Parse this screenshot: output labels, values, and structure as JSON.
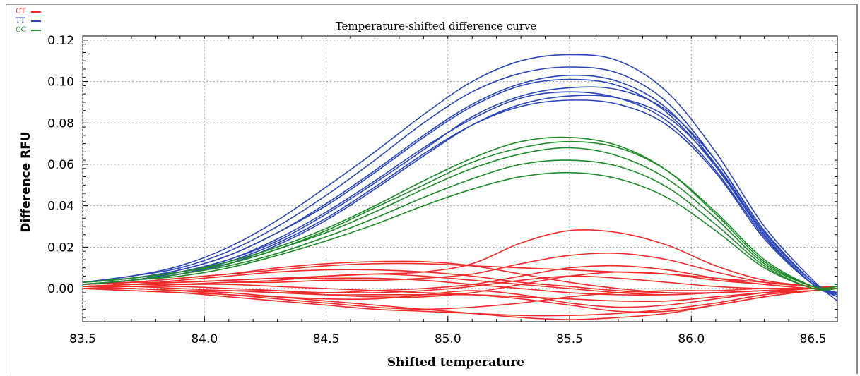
{
  "legend": [
    {
      "label": "CT",
      "color": "#ee2a2a"
    },
    {
      "label": "TT",
      "color": "#2c46b8"
    },
    {
      "label": "CC",
      "color": "#1e8a2a"
    }
  ],
  "chart_data": {
    "type": "line",
    "title": "Temperature-shifted difference curve",
    "xlabel": "Shifted temperature",
    "ylabel": "Difference RFU",
    "xlim": [
      83.5,
      86.6
    ],
    "ylim": [
      -0.016,
      0.122
    ],
    "x_ticks": [
      "83.5",
      "84.0",
      "84.5",
      "85.0",
      "85.5",
      "86.0",
      "86.5"
    ],
    "y_ticks": [
      "0.00",
      "0.02",
      "0.04",
      "0.06",
      "0.08",
      "0.10",
      "0.12"
    ],
    "grid": true,
    "legend_position": "top-left",
    "x": [
      83.5,
      83.7,
      83.9,
      84.1,
      84.3,
      84.5,
      84.7,
      84.9,
      85.1,
      85.3,
      85.5,
      85.7,
      85.9,
      86.1,
      86.3,
      86.5,
      86.6
    ],
    "series": [
      {
        "group": "TT",
        "color": "#2c46b8",
        "values": [
          0.003,
          0.006,
          0.011,
          0.02,
          0.033,
          0.049,
          0.066,
          0.084,
          0.1,
          0.11,
          0.113,
          0.11,
          0.095,
          0.066,
          0.03,
          0.004,
          -0.006
        ]
      },
      {
        "group": "TT",
        "color": "#2c46b8",
        "values": [
          0.003,
          0.006,
          0.01,
          0.018,
          0.03,
          0.045,
          0.062,
          0.08,
          0.095,
          0.104,
          0.107,
          0.104,
          0.09,
          0.062,
          0.028,
          0.003,
          -0.004
        ]
      },
      {
        "group": "TT",
        "color": "#2c46b8",
        "values": [
          0.003,
          0.005,
          0.009,
          0.016,
          0.027,
          0.041,
          0.057,
          0.074,
          0.089,
          0.099,
          0.103,
          0.1,
          0.087,
          0.06,
          0.026,
          0.002,
          -0.003
        ]
      },
      {
        "group": "TT",
        "color": "#2c46b8",
        "values": [
          0.002,
          0.004,
          0.008,
          0.014,
          0.024,
          0.037,
          0.052,
          0.068,
          0.082,
          0.092,
          0.095,
          0.092,
          0.081,
          0.057,
          0.025,
          0.002,
          -0.002
        ]
      },
      {
        "group": "TT",
        "color": "#2c46b8",
        "values": [
          0.002,
          0.004,
          0.007,
          0.013,
          0.022,
          0.034,
          0.049,
          0.065,
          0.079,
          0.088,
          0.091,
          0.089,
          0.079,
          0.056,
          0.024,
          0.002,
          -0.002
        ]
      },
      {
        "group": "TT",
        "color": "#2c46b8",
        "values": [
          0.002,
          0.004,
          0.008,
          0.014,
          0.023,
          0.036,
          0.051,
          0.067,
          0.083,
          0.093,
          0.097,
          0.096,
          0.086,
          0.062,
          0.028,
          0.003,
          -0.003
        ]
      },
      {
        "group": "TT",
        "color": "#2c46b8",
        "values": [
          0.002,
          0.004,
          0.007,
          0.012,
          0.021,
          0.033,
          0.048,
          0.064,
          0.079,
          0.089,
          0.093,
          0.092,
          0.083,
          0.06,
          0.027,
          0.003,
          -0.002
        ]
      },
      {
        "group": "TT",
        "color": "#2c46b8",
        "values": [
          0.003,
          0.005,
          0.009,
          0.016,
          0.027,
          0.04,
          0.056,
          0.073,
          0.088,
          0.098,
          0.101,
          0.098,
          0.085,
          0.059,
          0.026,
          0.002,
          -0.003
        ]
      },
      {
        "group": "CC",
        "color": "#1e8a2a",
        "values": [
          0.003,
          0.005,
          0.008,
          0.013,
          0.02,
          0.029,
          0.04,
          0.052,
          0.063,
          0.071,
          0.073,
          0.069,
          0.057,
          0.036,
          0.013,
          0.001,
          0.001
        ]
      },
      {
        "group": "CC",
        "color": "#1e8a2a",
        "values": [
          0.003,
          0.005,
          0.008,
          0.012,
          0.019,
          0.027,
          0.037,
          0.048,
          0.058,
          0.065,
          0.068,
          0.064,
          0.053,
          0.034,
          0.012,
          0.001,
          0.001
        ]
      },
      {
        "group": "CC",
        "color": "#1e8a2a",
        "values": [
          0.002,
          0.004,
          0.007,
          0.011,
          0.017,
          0.025,
          0.034,
          0.044,
          0.053,
          0.06,
          0.062,
          0.059,
          0.049,
          0.031,
          0.011,
          0.0,
          0.0
        ]
      },
      {
        "group": "CC",
        "color": "#1e8a2a",
        "values": [
          0.002,
          0.004,
          0.006,
          0.01,
          0.016,
          0.023,
          0.031,
          0.04,
          0.048,
          0.054,
          0.056,
          0.053,
          0.044,
          0.028,
          0.01,
          0.0,
          0.0
        ]
      },
      {
        "group": "CC",
        "color": "#1e8a2a",
        "values": [
          0.003,
          0.005,
          0.008,
          0.012,
          0.019,
          0.028,
          0.039,
          0.05,
          0.061,
          0.068,
          0.071,
          0.068,
          0.057,
          0.037,
          0.014,
          0.001,
          0.0
        ]
      },
      {
        "group": "CT",
        "color": "#ee2a2a",
        "values": [
          0.002,
          0.003,
          0.005,
          0.007,
          0.009,
          0.011,
          0.012,
          0.012,
          0.011,
          0.01,
          0.009,
          0.008,
          0.007,
          0.005,
          0.003,
          0.001,
          0.001
        ]
      },
      {
        "group": "CT",
        "color": "#ee2a2a",
        "values": [
          0.001,
          0.002,
          0.003,
          0.004,
          0.005,
          0.006,
          0.007,
          0.008,
          0.012,
          0.022,
          0.028,
          0.027,
          0.021,
          0.011,
          0.004,
          0.001,
          0.0
        ]
      },
      {
        "group": "CT",
        "color": "#ee2a2a",
        "values": [
          0.0,
          -0.001,
          -0.002,
          -0.004,
          -0.006,
          -0.008,
          -0.01,
          -0.011,
          -0.012,
          -0.013,
          -0.013,
          -0.012,
          -0.01,
          -0.007,
          -0.003,
          -0.001,
          0.0
        ]
      },
      {
        "group": "CT",
        "color": "#ee2a2a",
        "values": [
          0.0,
          0.0,
          -0.001,
          -0.002,
          -0.004,
          -0.006,
          -0.008,
          -0.01,
          -0.012,
          -0.014,
          -0.015,
          -0.014,
          -0.012,
          -0.008,
          -0.004,
          -0.001,
          0.0
        ]
      },
      {
        "group": "CT",
        "color": "#ee2a2a",
        "values": [
          0.001,
          0.002,
          0.002,
          0.003,
          0.003,
          0.004,
          0.004,
          0.005,
          0.007,
          0.012,
          0.016,
          0.017,
          0.014,
          0.008,
          0.003,
          0.001,
          0.0
        ]
      },
      {
        "group": "CT",
        "color": "#ee2a2a",
        "values": [
          0.001,
          0.001,
          0.001,
          0.0,
          -0.001,
          -0.003,
          -0.004,
          -0.004,
          -0.002,
          0.002,
          0.006,
          0.008,
          0.007,
          0.004,
          0.002,
          0.0,
          0.0
        ]
      },
      {
        "group": "CT",
        "color": "#ee2a2a",
        "values": [
          0.001,
          0.002,
          0.004,
          0.006,
          0.008,
          0.009,
          0.009,
          0.008,
          0.006,
          0.003,
          0.001,
          -0.001,
          -0.002,
          -0.002,
          -0.001,
          0.0,
          0.0
        ]
      },
      {
        "group": "CT",
        "color": "#ee2a2a",
        "values": [
          0.0,
          0.0,
          -0.001,
          -0.001,
          -0.002,
          -0.002,
          -0.002,
          -0.001,
          0.001,
          0.004,
          0.006,
          0.005,
          0.003,
          0.001,
          0.0,
          0.0,
          0.0
        ]
      },
      {
        "group": "CT",
        "color": "#ee2a2a",
        "values": [
          0.001,
          0.0,
          -0.001,
          -0.003,
          -0.004,
          -0.005,
          -0.005,
          -0.003,
          -0.001,
          -0.003,
          -0.007,
          -0.009,
          -0.008,
          -0.005,
          -0.002,
          0.0,
          0.0
        ]
      },
      {
        "group": "CT",
        "color": "#ee2a2a",
        "values": [
          0.002,
          0.003,
          0.003,
          0.004,
          0.005,
          0.005,
          0.005,
          0.004,
          0.002,
          0.0,
          -0.002,
          -0.003,
          -0.003,
          -0.002,
          -0.001,
          0.0,
          0.0
        ]
      },
      {
        "group": "CT",
        "color": "#ee2a2a",
        "values": [
          0.001,
          0.001,
          0.002,
          0.003,
          0.004,
          0.006,
          0.007,
          0.006,
          0.004,
          0.002,
          0.0,
          -0.002,
          -0.003,
          -0.002,
          -0.001,
          0.0,
          0.0
        ]
      },
      {
        "group": "CT",
        "color": "#ee2a2a",
        "values": [
          0.0,
          0.0,
          -0.001,
          -0.001,
          -0.002,
          -0.003,
          -0.003,
          -0.003,
          -0.003,
          -0.004,
          -0.005,
          -0.006,
          -0.006,
          -0.004,
          -0.002,
          -0.001,
          0.0
        ]
      },
      {
        "group": "CT",
        "color": "#ee2a2a",
        "values": [
          0.002,
          0.003,
          0.005,
          0.007,
          0.01,
          0.012,
          0.013,
          0.013,
          0.011,
          0.007,
          0.003,
          0.0,
          -0.002,
          -0.002,
          -0.001,
          0.0,
          0.001
        ]
      },
      {
        "group": "CT",
        "color": "#ee2a2a",
        "values": [
          0.001,
          0.001,
          0.0,
          -0.001,
          -0.001,
          -0.002,
          -0.001,
          0.0,
          0.002,
          0.006,
          0.01,
          0.011,
          0.009,
          0.005,
          0.002,
          0.0,
          0.0
        ]
      },
      {
        "group": "CT",
        "color": "#ee2a2a",
        "values": [
          0.0,
          -0.001,
          -0.002,
          -0.003,
          -0.005,
          -0.007,
          -0.009,
          -0.01,
          -0.009,
          -0.007,
          -0.004,
          -0.002,
          -0.001,
          -0.001,
          0.0,
          0.0,
          0.0
        ]
      },
      {
        "group": "CT",
        "color": "#ee2a2a",
        "values": [
          0.001,
          0.002,
          0.002,
          0.002,
          0.001,
          0.0,
          -0.001,
          -0.002,
          -0.003,
          -0.005,
          -0.008,
          -0.011,
          -0.011,
          -0.008,
          -0.004,
          -0.001,
          0.0
        ]
      }
    ]
  }
}
